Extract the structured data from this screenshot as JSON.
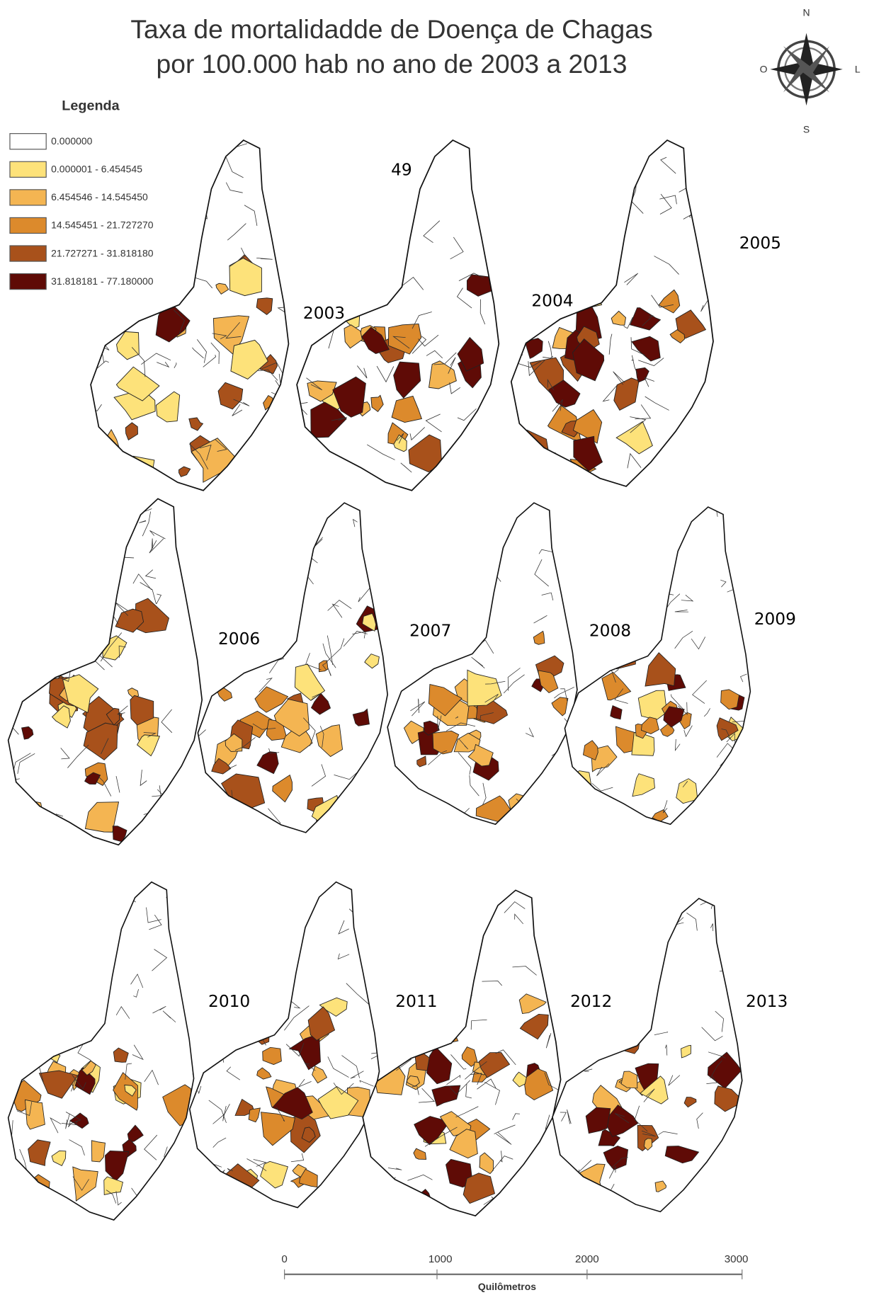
{
  "title": [
    "Taxa de mortalidadde de Doença de Chagas",
    "por 100.000 hab no ano de 2003 a 2013"
  ],
  "compass": {
    "n": "N",
    "o": "O",
    "l": "L",
    "s": "S"
  },
  "legend": {
    "title": "Legenda",
    "items": [
      "0.000000",
      "0.000001 - 6.454545",
      "6.454546 - 14.545450",
      "14.545451 - 21.727270",
      "21.727271 - 31.818180",
      "31.818181 - 77.180000"
    ]
  },
  "stray_label": "49",
  "maps": [
    {
      "label": "2003"
    },
    {
      "label": "2004"
    },
    {
      "label": "2005"
    },
    {
      "label": "2006"
    },
    {
      "label": "2007"
    },
    {
      "label": "2008"
    },
    {
      "label": "2009"
    },
    {
      "label": "2010"
    },
    {
      "label": "2011"
    },
    {
      "label": "2012"
    },
    {
      "label": "2013"
    }
  ],
  "scale_bar": {
    "ticks": [
      0,
      1000,
      2000,
      3000
    ],
    "unit": "Quilômetros"
  }
}
